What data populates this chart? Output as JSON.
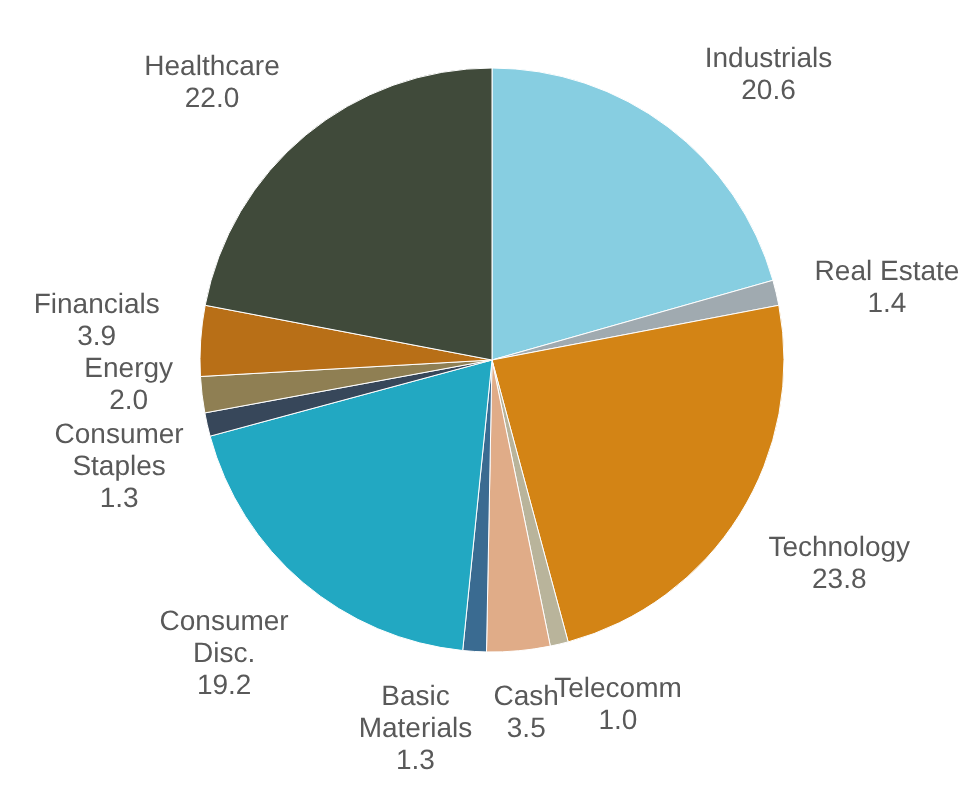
{
  "chart_data": {
    "type": "pie",
    "categories": [
      "Industrials",
      "Real Estate",
      "Technology",
      "Telecomm",
      "Cash",
      "Basic Materials",
      "Consumer Disc.",
      "Consumer Staples",
      "Energy",
      "Financials",
      "Healthcare"
    ],
    "values": [
      20.6,
      1.4,
      23.8,
      1.0,
      3.5,
      1.3,
      19.2,
      1.3,
      2.0,
      3.9,
      22.0
    ],
    "colors": [
      "#87cee1",
      "#a0aab0",
      "#d38415",
      "#b9b49b",
      "#e0ac88",
      "#3a6b91",
      "#22a8c2",
      "#37475a",
      "#8f7f53",
      "#b86f17",
      "#404a3a"
    ],
    "value_labels": [
      "20.6",
      "1.4",
      "23.8",
      "1.0",
      "3.5",
      "1.3",
      "19.2",
      "1.3",
      "2.0",
      "3.9",
      "22.0"
    ]
  }
}
